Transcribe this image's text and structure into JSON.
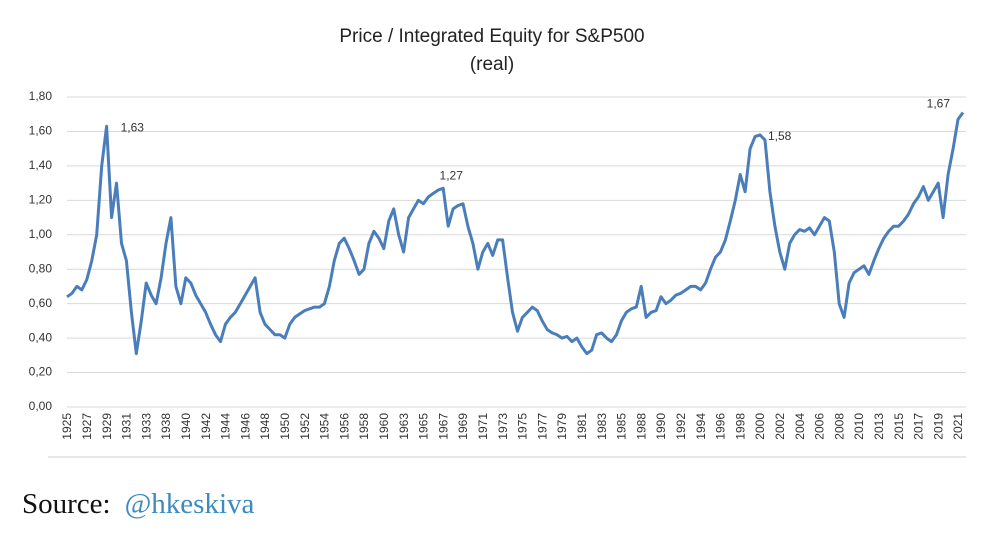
{
  "chart_data": {
    "type": "line",
    "title": "Price / Integrated Equity for S&P500",
    "subtitle": "(real)",
    "categories": [
      "1925",
      null,
      null,
      null,
      "1927",
      null,
      null,
      null,
      "1929",
      null,
      null,
      null,
      "1931",
      null,
      null,
      null,
      "1933",
      null,
      null,
      null,
      "1938",
      null,
      null,
      null,
      "1940",
      null,
      null,
      null,
      "1942",
      null,
      null,
      null,
      "1944",
      null,
      null,
      null,
      "1946",
      null,
      null,
      null,
      "1948",
      null,
      null,
      null,
      "1950",
      null,
      null,
      null,
      "1952",
      null,
      null,
      null,
      "1954",
      null,
      null,
      null,
      "1956",
      null,
      null,
      null,
      "1958",
      null,
      null,
      null,
      "1960",
      null,
      null,
      null,
      "1963",
      null,
      null,
      null,
      "1965",
      null,
      null,
      null,
      "1967",
      null,
      null,
      null,
      "1969",
      null,
      null,
      null,
      "1971",
      null,
      null,
      null,
      "1973",
      null,
      null,
      null,
      "1975",
      null,
      null,
      null,
      "1977",
      null,
      null,
      null,
      "1979",
      null,
      null,
      null,
      "1981",
      null,
      null,
      null,
      "1983",
      null,
      null,
      null,
      "1985",
      null,
      null,
      null,
      "1988",
      null,
      null,
      null,
      "1990",
      null,
      null,
      null,
      "1992",
      null,
      null,
      null,
      "1994",
      null,
      null,
      null,
      "1996",
      null,
      null,
      null,
      "1998",
      null,
      null,
      null,
      "2000",
      null,
      null,
      null,
      "2002",
      null,
      null,
      null,
      "2004",
      null,
      null,
      null,
      "2006",
      null,
      null,
      null,
      "2008",
      null,
      null,
      null,
      "2010",
      null,
      null,
      null,
      "2013",
      null,
      null,
      null,
      "2015",
      null,
      null,
      null,
      "2017",
      null,
      null,
      null,
      "2019",
      null,
      null,
      null,
      "2021",
      null
    ],
    "values": [
      0.64,
      0.66,
      0.7,
      0.68,
      0.74,
      0.85,
      1.0,
      1.4,
      1.63,
      1.1,
      1.3,
      0.95,
      0.85,
      0.55,
      0.31,
      0.5,
      0.72,
      0.65,
      0.6,
      0.75,
      0.95,
      1.1,
      0.7,
      0.6,
      0.75,
      0.72,
      0.65,
      0.6,
      0.55,
      0.48,
      0.42,
      0.38,
      0.48,
      0.52,
      0.55,
      0.6,
      0.65,
      0.7,
      0.75,
      0.55,
      0.48,
      0.45,
      0.42,
      0.42,
      0.4,
      0.48,
      0.52,
      0.54,
      0.56,
      0.57,
      0.58,
      0.58,
      0.6,
      0.7,
      0.85,
      0.95,
      0.98,
      0.92,
      0.85,
      0.77,
      0.8,
      0.95,
      1.02,
      0.98,
      0.92,
      1.08,
      1.15,
      1.0,
      0.9,
      1.1,
      1.15,
      1.2,
      1.18,
      1.22,
      1.24,
      1.26,
      1.27,
      1.05,
      1.15,
      1.17,
      1.18,
      1.05,
      0.95,
      0.8,
      0.9,
      0.95,
      0.88,
      0.97,
      0.97,
      0.75,
      0.55,
      0.44,
      0.52,
      0.55,
      0.58,
      0.56,
      0.5,
      0.45,
      0.43,
      0.42,
      0.4,
      0.41,
      0.38,
      0.4,
      0.35,
      0.31,
      0.33,
      0.42,
      0.43,
      0.4,
      0.38,
      0.42,
      0.5,
      0.55,
      0.57,
      0.58,
      0.7,
      0.52,
      0.55,
      0.56,
      0.64,
      0.6,
      0.62,
      0.65,
      0.66,
      0.68,
      0.7,
      0.7,
      0.68,
      0.72,
      0.8,
      0.87,
      0.9,
      0.97,
      1.08,
      1.2,
      1.35,
      1.25,
      1.5,
      1.57,
      1.58,
      1.55,
      1.25,
      1.05,
      0.9,
      0.8,
      0.95,
      1.0,
      1.03,
      1.02,
      1.04,
      1.0,
      1.05,
      1.1,
      1.08,
      0.9,
      0.6,
      0.52,
      0.72,
      0.78,
      0.8,
      0.82,
      0.77,
      0.85,
      0.92,
      0.98,
      1.02,
      1.05,
      1.05,
      1.08,
      1.12,
      1.18,
      1.22,
      1.28,
      1.2,
      1.25,
      1.3,
      1.1,
      1.35,
      1.5,
      1.67,
      1.71
    ],
    "color": "#4a7ebb",
    "ylim": [
      0,
      1.8
    ],
    "yticks": [
      {
        "value": 0,
        "label": "0,00"
      },
      {
        "value": 0.2,
        "label": "0,20"
      },
      {
        "value": 0.4,
        "label": "0,40"
      },
      {
        "value": 0.6,
        "label": "0,60"
      },
      {
        "value": 0.8,
        "label": "0,80"
      },
      {
        "value": 1.0,
        "label": "1,00"
      },
      {
        "value": 1.2,
        "label": "1,20"
      },
      {
        "value": 1.4,
        "label": "1,40"
      },
      {
        "value": 1.6,
        "label": "1,60"
      },
      {
        "value": 1.8,
        "label": "1,80"
      }
    ],
    "grid": true,
    "annotations": [
      {
        "value": 1.63,
        "label": "1,63"
      },
      {
        "value": 1.27,
        "label": "1,27"
      },
      {
        "value": 1.58,
        "label": "1,58"
      },
      {
        "value": 1.67,
        "label": "1,67"
      }
    ]
  },
  "source": {
    "prefix": "Source:",
    "handle": "@hkeskiva"
  }
}
